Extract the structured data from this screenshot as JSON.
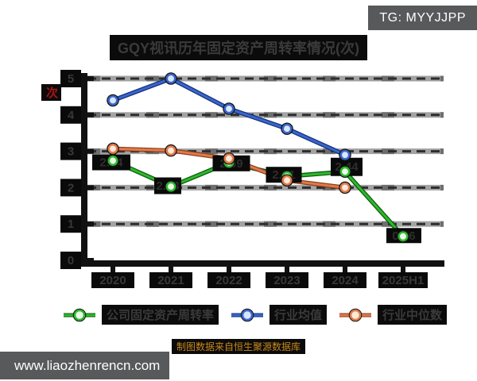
{
  "badge": {
    "text": "TG: MYYJJPP"
  },
  "title": "GQY视讯历年固定资产周转率情况(次)",
  "y_axis_label": "次",
  "caption": "制图数据来自恒生聚源数据库",
  "watermark": "www.liaozhenrencn.com",
  "colors": {
    "badge_bg": "#58595b",
    "watermark_bg": "#58595b",
    "y_axis_label_red": "#a81414",
    "caption_gold": "#c9881c",
    "label_box": "#0a0a0a",
    "label_text": "#383838",
    "grid_band": "#a3a3a3",
    "grid_dash": "#2d2d2d",
    "spine": "#111111"
  },
  "chart_data": {
    "type": "line",
    "title": "GQY视讯历年固定资产周转率情况(次)",
    "unit": "次",
    "categories": [
      "2020",
      "2021",
      "2022",
      "2023",
      "2024",
      "2025H1"
    ],
    "y_ticks": [
      0,
      1,
      2,
      3,
      4,
      5
    ],
    "ylim": [
      0,
      5
    ],
    "grid": true,
    "legend_position": "bottom",
    "series": [
      {
        "name": "公司固定资产周转率",
        "color": "#2db92d",
        "edge": "#0e5a0e",
        "marker_fill": "#eafbe8",
        "values": [
          2.74,
          2.03,
          2.69,
          2.31,
          2.44,
          0.66
        ],
        "labels": [
          "2.74",
          "2.03",
          "2.69",
          "2.31",
          "2.44",
          "0.66"
        ]
      },
      {
        "name": "行业均值",
        "color": "#3a66cc",
        "edge": "#15307a",
        "marker_fill": "#d8e6ff",
        "values": [
          4.4,
          5.0,
          4.17,
          3.62,
          2.9,
          null
        ],
        "labels": []
      },
      {
        "name": "行业中位数",
        "color": "#e07a4a",
        "edge": "#8a3f1d",
        "marker_fill": "#ffe9d9",
        "values": [
          3.07,
          3.02,
          2.8,
          2.2,
          2.0,
          null
        ],
        "labels": []
      }
    ]
  }
}
